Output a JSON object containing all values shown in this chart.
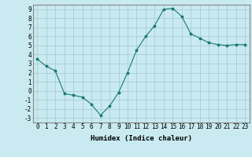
{
  "x": [
    0,
    1,
    2,
    3,
    4,
    5,
    6,
    7,
    8,
    9,
    10,
    11,
    12,
    13,
    14,
    15,
    16,
    17,
    18,
    19,
    20,
    21,
    22,
    23
  ],
  "y": [
    3.5,
    2.7,
    2.2,
    -0.3,
    -0.5,
    -0.7,
    -1.5,
    -2.7,
    -1.7,
    -0.2,
    2.0,
    4.5,
    6.0,
    7.2,
    9.0,
    9.1,
    8.2,
    6.3,
    5.8,
    5.3,
    5.1,
    5.0,
    5.1,
    5.1
  ],
  "line_color": "#1a7a6e",
  "marker": "*",
  "marker_size": 2.5,
  "bg_color": "#c8eaf0",
  "grid_color": "#aacdd8",
  "xlabel": "Humidex (Indice chaleur)",
  "ylim": [
    -3.5,
    9.5
  ],
  "xlim": [
    -0.5,
    23.5
  ],
  "yticks": [
    -3,
    -2,
    -1,
    0,
    1,
    2,
    3,
    4,
    5,
    6,
    7,
    8,
    9
  ],
  "xticks": [
    0,
    1,
    2,
    3,
    4,
    5,
    6,
    7,
    8,
    9,
    10,
    11,
    12,
    13,
    14,
    15,
    16,
    17,
    18,
    19,
    20,
    21,
    22,
    23
  ],
  "font_size": 5.5,
  "xlabel_font_size": 6.5
}
